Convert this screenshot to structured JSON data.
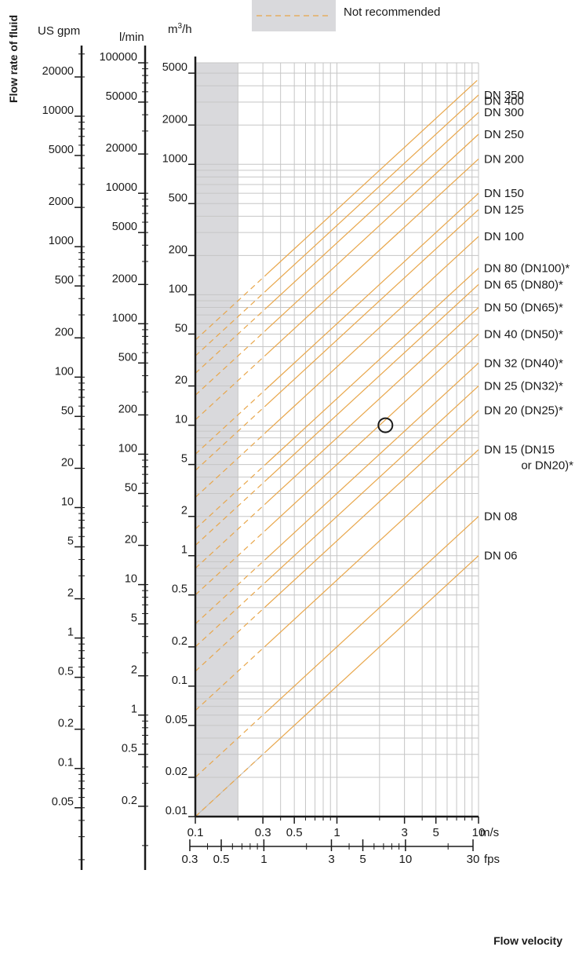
{
  "legend": {
    "label": "Not recommended",
    "swatch_fill": "#d9d9dc",
    "dash_color": "#e8a64a"
  },
  "left_axes": {
    "vertical_title": "Flow rate of fluid",
    "us_gpm": {
      "unit": "US gpm",
      "ticks": [
        {
          "label": "20000",
          "value": 20000
        },
        {
          "label": "10000",
          "value": 10000
        },
        {
          "label": "5000",
          "value": 5000
        },
        {
          "label": "2000",
          "value": 2000
        },
        {
          "label": "1000",
          "value": 1000
        },
        {
          "label": "500",
          "value": 500
        },
        {
          "label": "200",
          "value": 200
        },
        {
          "label": "100",
          "value": 100
        },
        {
          "label": "50",
          "value": 50
        },
        {
          "label": "20",
          "value": 20
        },
        {
          "label": "10",
          "value": 10
        },
        {
          "label": "5",
          "value": 5
        },
        {
          "label": "2",
          "value": 2
        },
        {
          "label": "1",
          "value": 1
        },
        {
          "label": "0.5",
          "value": 0.5
        },
        {
          "label": "0.2",
          "value": 0.2
        },
        {
          "label": "0.1",
          "value": 0.1
        },
        {
          "label": "0.05",
          "value": 0.05
        }
      ]
    },
    "l_min": {
      "unit": "l/min",
      "ticks": [
        {
          "label": "100000",
          "value": 100000
        },
        {
          "label": "50000",
          "value": 50000
        },
        {
          "label": "20000",
          "value": 20000
        },
        {
          "label": "10000",
          "value": 10000
        },
        {
          "label": "5000",
          "value": 5000
        },
        {
          "label": "2000",
          "value": 2000
        },
        {
          "label": "1000",
          "value": 1000
        },
        {
          "label": "500",
          "value": 500
        },
        {
          "label": "200",
          "value": 200
        },
        {
          "label": "100",
          "value": 100
        },
        {
          "label": "50",
          "value": 50
        },
        {
          "label": "20",
          "value": 20
        },
        {
          "label": "10",
          "value": 10
        },
        {
          "label": "5",
          "value": 5
        },
        {
          "label": "2",
          "value": 2
        },
        {
          "label": "1",
          "value": 1
        },
        {
          "label": "0.5",
          "value": 0.5
        },
        {
          "label": "0.2",
          "value": 0.2
        }
      ]
    }
  },
  "chart_data": {
    "type": "line",
    "y_scale": "log",
    "x_scale": "log",
    "y_unit_prefix": "m",
    "y_unit_superscript": "3",
    "y_unit_suffix": "/h",
    "y_range": [
      0.01,
      5000
    ],
    "y_ticks": [
      {
        "label": "5000",
        "value": 5000
      },
      {
        "label": "2000",
        "value": 2000
      },
      {
        "label": "1000",
        "value": 1000
      },
      {
        "label": "500",
        "value": 500
      },
      {
        "label": "200",
        "value": 200
      },
      {
        "label": "100",
        "value": 100
      },
      {
        "label": "50",
        "value": 50
      },
      {
        "label": "20",
        "value": 20
      },
      {
        "label": "10",
        "value": 10
      },
      {
        "label": "5",
        "value": 5
      },
      {
        "label": "2",
        "value": 2
      },
      {
        "label": "1",
        "value": 1
      },
      {
        "label": "0.5",
        "value": 0.5
      },
      {
        "label": "0.2",
        "value": 0.2
      },
      {
        "label": "0.1",
        "value": 0.1
      },
      {
        "label": "0.05",
        "value": 0.05
      },
      {
        "label": "0.02",
        "value": 0.02
      },
      {
        "label": "0.01",
        "value": 0.01
      }
    ],
    "x_range": [
      0.1,
      10
    ],
    "x_unit": "m/s",
    "x_ticks": [
      {
        "label": "0.1",
        "value": 0.1
      },
      {
        "label": "0.3",
        "value": 0.3
      },
      {
        "label": "0.5",
        "value": 0.5
      },
      {
        "label": "1",
        "value": 1
      },
      {
        "label": "3",
        "value": 3
      },
      {
        "label": "5",
        "value": 5
      },
      {
        "label": "10",
        "value": 10
      }
    ],
    "fps_unit": "fps",
    "fps_ticks": [
      {
        "label": "0.3",
        "value": 0.3
      },
      {
        "label": "0.5",
        "value": 0.5
      },
      {
        "label": "1",
        "value": 1
      },
      {
        "label": "3",
        "value": 3
      },
      {
        "label": "5",
        "value": 5
      },
      {
        "label": "10",
        "value": 10
      },
      {
        "label": "30",
        "value": 30
      }
    ],
    "xlabel": "Flow velocity",
    "not_recommended_range": [
      0.1,
      0.2
    ],
    "line_color": "#e8a64a",
    "series": [
      {
        "name": "DN 06",
        "flow_at_1ms": 0.1
      },
      {
        "name": "DN 08",
        "flow_at_1ms": 0.2
      },
      {
        "name": "DN 15 (DN15",
        "name_line2": "or DN20)*",
        "flow_at_1ms": 0.65
      },
      {
        "name": "DN 20 (DN25)*",
        "flow_at_1ms": 1.3
      },
      {
        "name": "DN 25 (DN32)*",
        "flow_at_1ms": 2.0
      },
      {
        "name": "DN 32 (DN40)*",
        "flow_at_1ms": 3.0
      },
      {
        "name": "DN 40 (DN50)*",
        "flow_at_1ms": 5.0
      },
      {
        "name": "DN 50 (DN65)*",
        "flow_at_1ms": 8.0
      },
      {
        "name": "DN 65 (DN80)*",
        "flow_at_1ms": 12.0
      },
      {
        "name": "DN 80 (DN100)*",
        "flow_at_1ms": 16.0
      },
      {
        "name": "DN 100",
        "flow_at_1ms": 28.0
      },
      {
        "name": "DN 125",
        "flow_at_1ms": 45.0
      },
      {
        "name": "DN 150",
        "flow_at_1ms": 60.0
      },
      {
        "name": "DN 200",
        "flow_at_1ms": 110.0
      },
      {
        "name": "DN 250",
        "flow_at_1ms": 170.0
      },
      {
        "name": "DN 300",
        "flow_at_1ms": 250.0
      },
      {
        "name": "DN 350",
        "flow_at_1ms": 340.0
      },
      {
        "name": "DN 400",
        "flow_at_1ms": 450.0
      }
    ],
    "marker": {
      "velocity": 2.2,
      "flow": 10
    }
  }
}
